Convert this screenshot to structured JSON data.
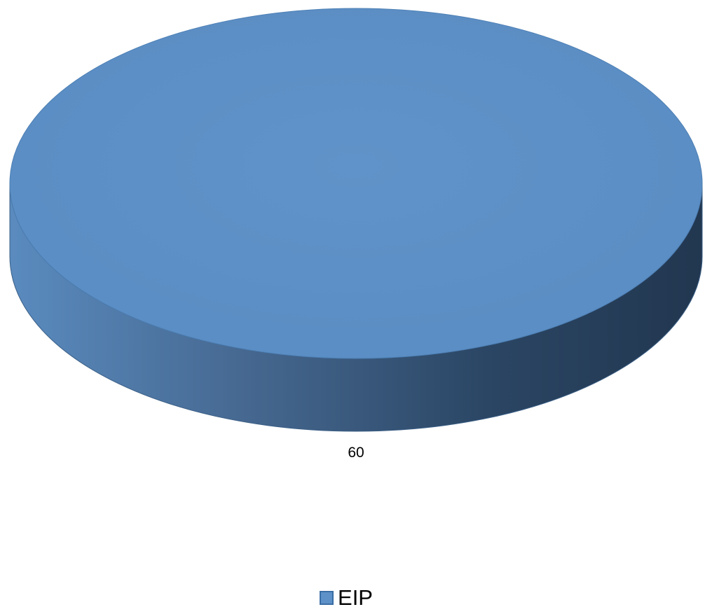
{
  "chart_data": {
    "type": "pie",
    "title": "",
    "style": "3d",
    "categories": [
      "EIP"
    ],
    "values": [
      60
    ],
    "data_labels": [
      "60"
    ],
    "colors": {
      "slice_top": "#5e91c7",
      "slice_side_light": "#5a8bbf",
      "slice_side_dark": "#253d57"
    },
    "legend": {
      "position": "bottom",
      "entries": [
        {
          "label": "EIP",
          "color": "#5e91c7"
        }
      ]
    }
  }
}
